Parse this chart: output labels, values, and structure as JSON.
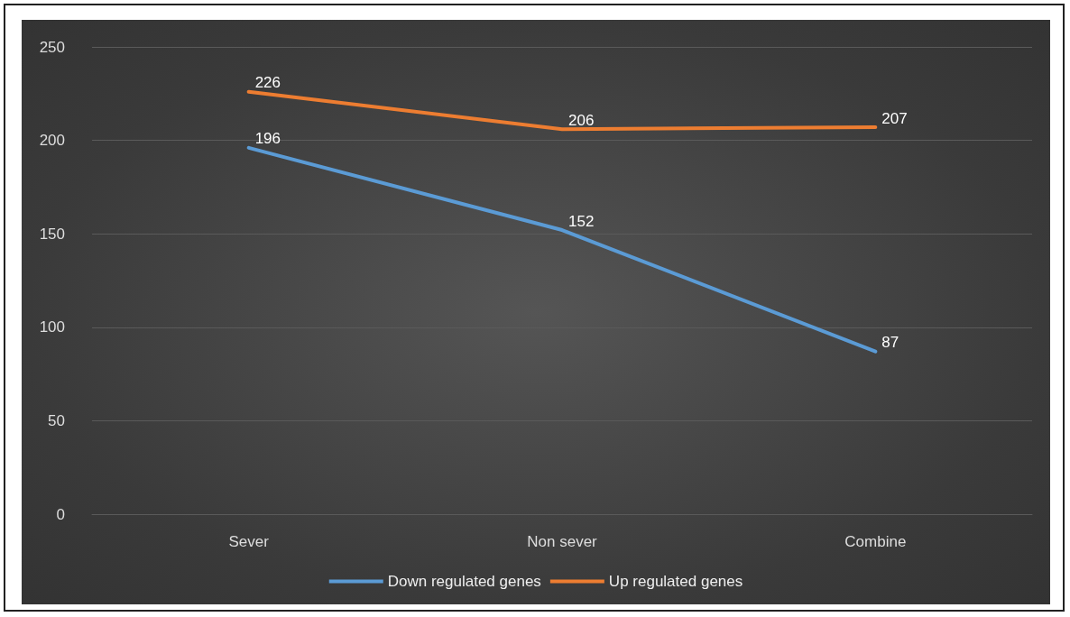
{
  "chart_data": {
    "type": "line",
    "categories": [
      "Sever",
      "Non sever",
      "Combine"
    ],
    "series": [
      {
        "name": "Down regulated genes",
        "color": "#5b9bd5",
        "values": [
          196,
          152,
          87
        ]
      },
      {
        "name": "Up regulated genes",
        "color": "#ed7d31",
        "values": [
          226,
          206,
          207
        ]
      }
    ],
    "ylim": [
      0,
      250
    ],
    "yticks": [
      0,
      50,
      100,
      150,
      200,
      250
    ],
    "grid": "y",
    "legend": "bottom",
    "data_labels": true,
    "marker": "none"
  }
}
